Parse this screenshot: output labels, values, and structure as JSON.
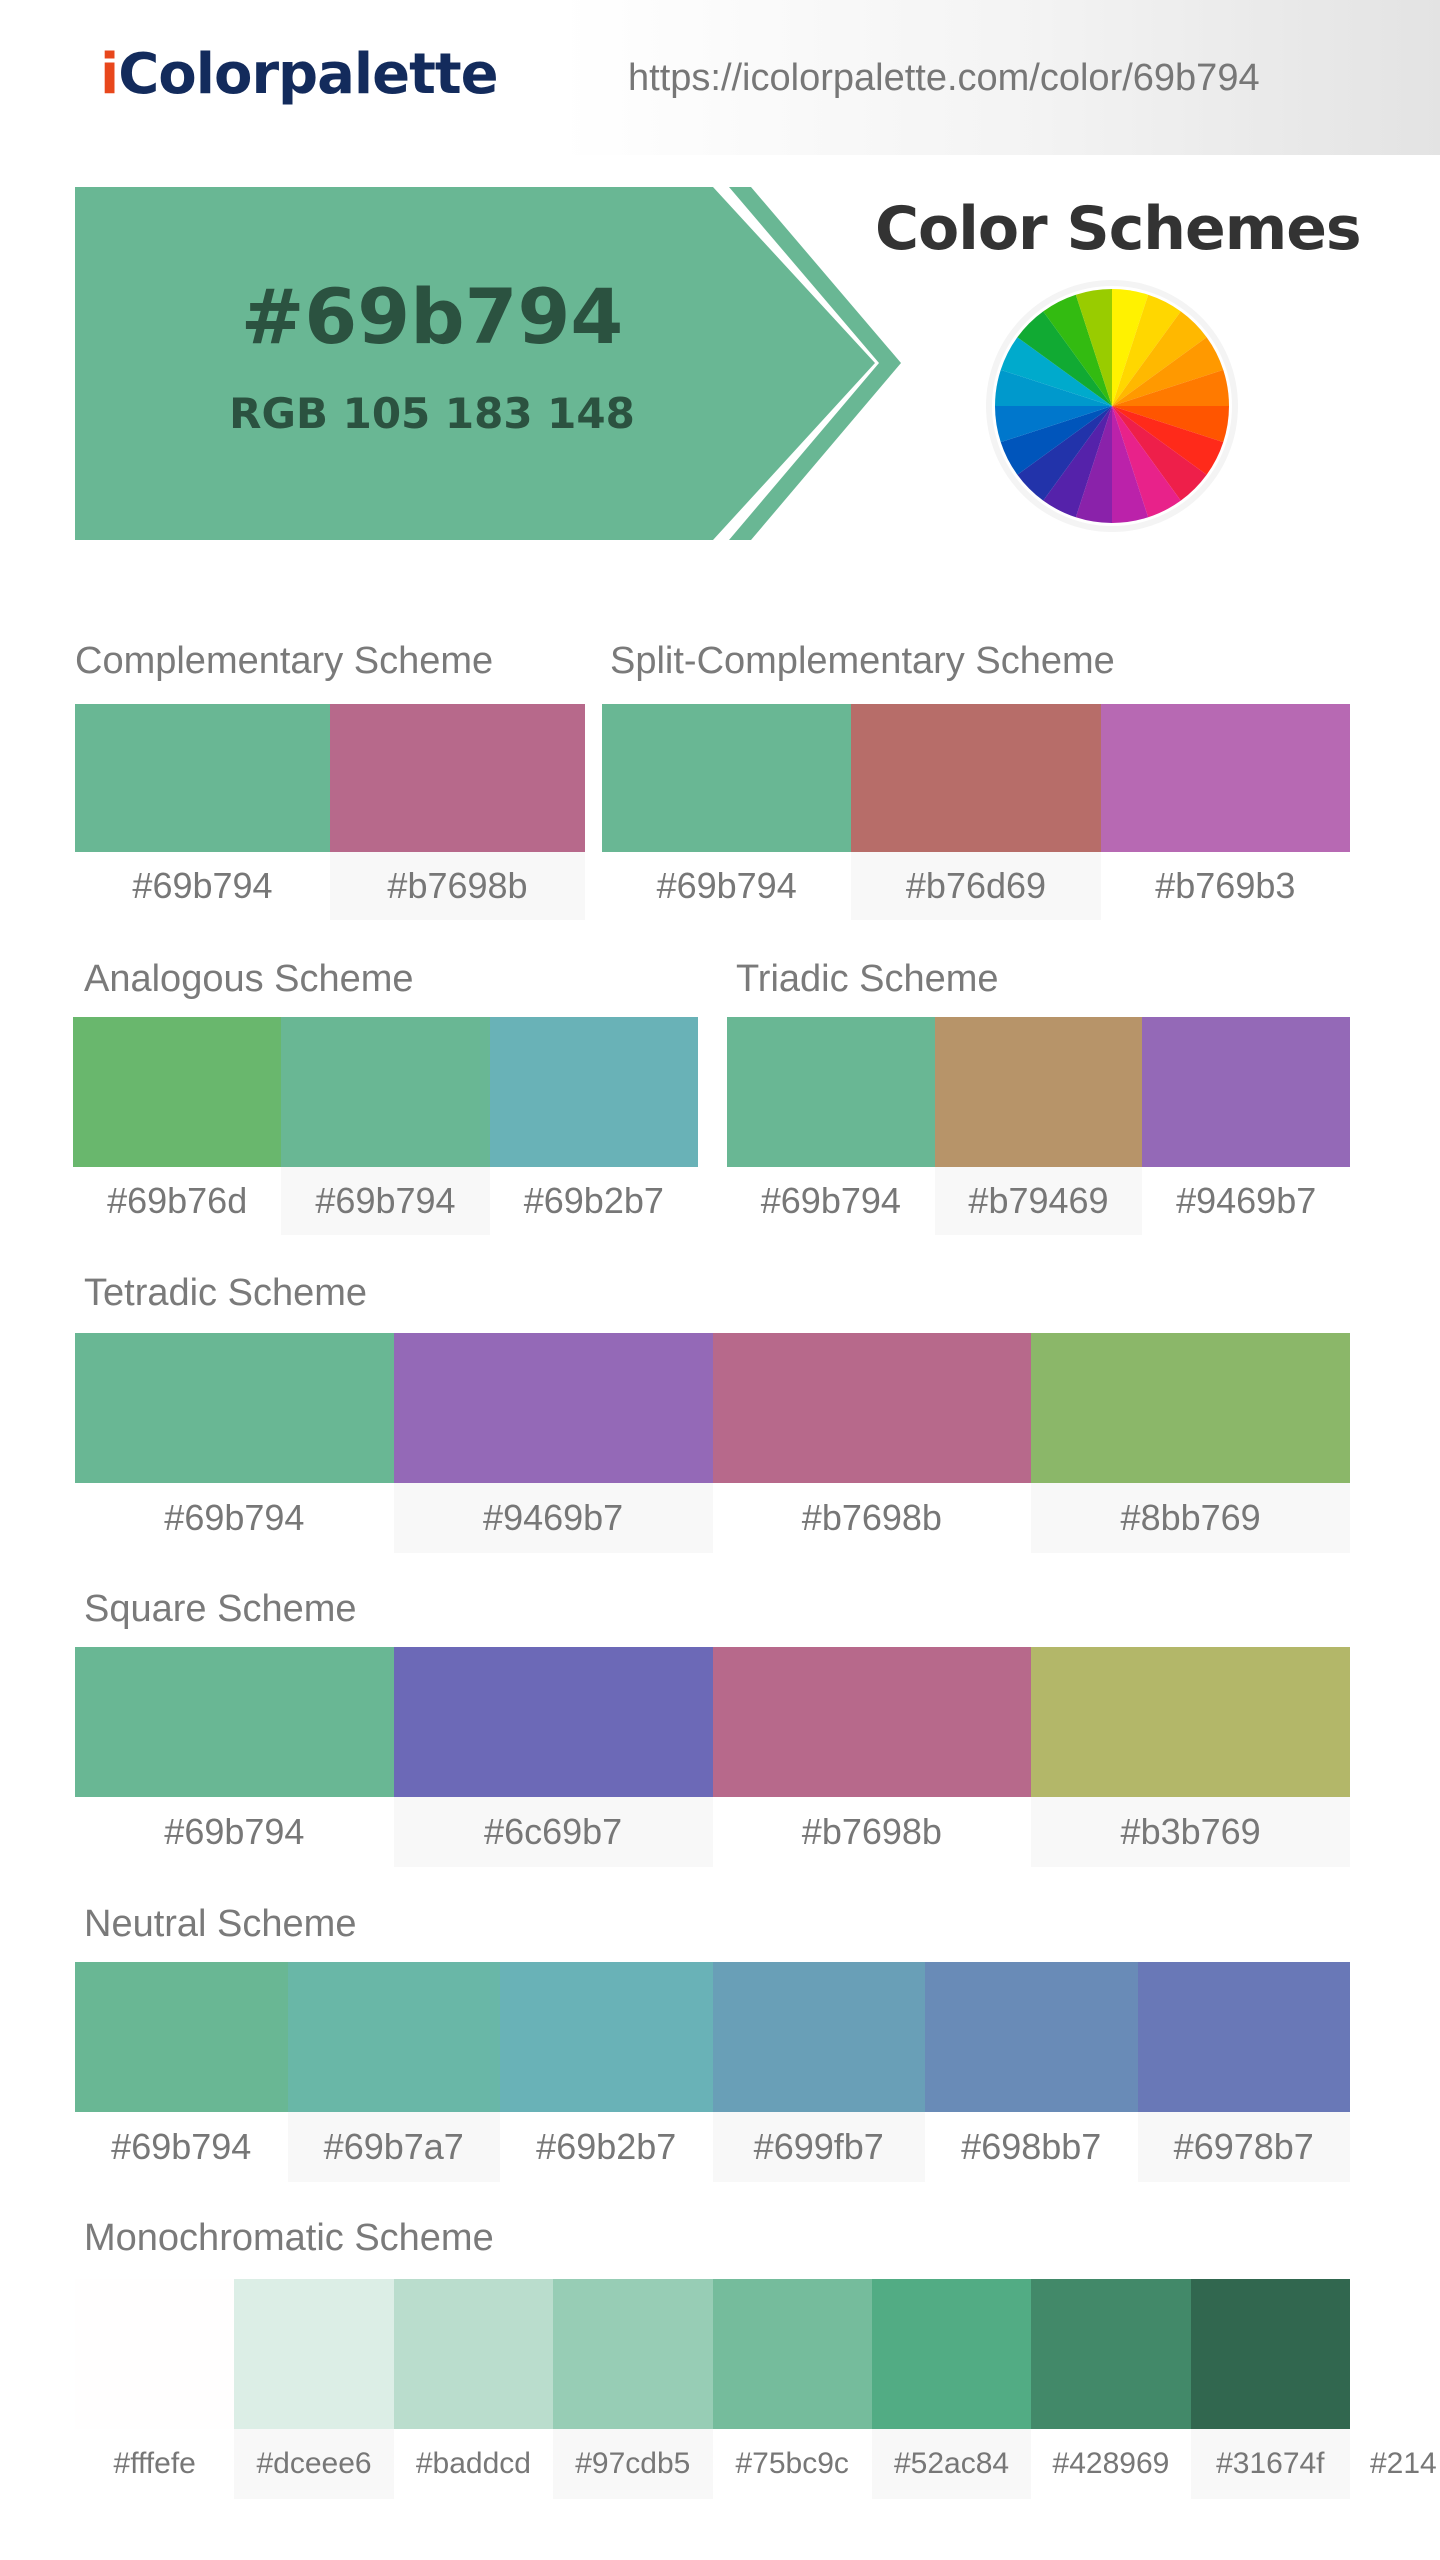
{
  "header": {
    "logo_i": "i",
    "logo_rest": "Colorpalette",
    "url": "https://icolorpalette.com/color/69b794"
  },
  "hero": {
    "hex": "#69b794",
    "rgb": "RGB 105 183 148",
    "color": "#69b794"
  },
  "schemes_title": "Color Schemes",
  "color_wheel_colors": [
    "#fff200",
    "#ffd700",
    "#ffb800",
    "#ff9900",
    "#ff7a00",
    "#ff5500",
    "#ff2a1a",
    "#ee1f4a",
    "#e8228a",
    "#bb22aa",
    "#8a22aa",
    "#5522aa",
    "#2233aa",
    "#0055bb",
    "#0077cc",
    "#0099cc",
    "#00aacc",
    "#11aa33",
    "#33bb11",
    "#99cc00"
  ],
  "sections": {
    "complementary": {
      "title": "Complementary Scheme",
      "swatches": [
        {
          "hex": "#69b794",
          "label": "#69b794"
        },
        {
          "hex": "#b7698b",
          "label": "#b7698b"
        }
      ]
    },
    "split": {
      "title": "Split-Complementary Scheme",
      "swatches": [
        {
          "hex": "#69b794",
          "label": "#69b794"
        },
        {
          "hex": "#b76d69",
          "label": "#b76d69"
        },
        {
          "hex": "#b769b3",
          "label": "#b769b3"
        }
      ]
    },
    "analogous": {
      "title": "Analogous Scheme",
      "swatches": [
        {
          "hex": "#69b76d",
          "label": "#69b76d"
        },
        {
          "hex": "#69b794",
          "label": "#69b794"
        },
        {
          "hex": "#69b2b7",
          "label": "#69b2b7"
        }
      ]
    },
    "triadic": {
      "title": "Triadic Scheme",
      "swatches": [
        {
          "hex": "#69b794",
          "label": "#69b794"
        },
        {
          "hex": "#b79469",
          "label": "#b79469"
        },
        {
          "hex": "#9469b7",
          "label": "#9469b7"
        }
      ]
    },
    "tetradic": {
      "title": "Tetradic Scheme",
      "swatches": [
        {
          "hex": "#69b794",
          "label": "#69b794"
        },
        {
          "hex": "#9469b7",
          "label": "#9469b7"
        },
        {
          "hex": "#b7698b",
          "label": "#b7698b"
        },
        {
          "hex": "#8bb769",
          "label": "#8bb769"
        }
      ]
    },
    "square": {
      "title": "Square Scheme",
      "swatches": [
        {
          "hex": "#69b794",
          "label": "#69b794"
        },
        {
          "hex": "#6c69b7",
          "label": "#6c69b7"
        },
        {
          "hex": "#b7698b",
          "label": "#b7698b"
        },
        {
          "hex": "#b3b769",
          "label": "#b3b769"
        }
      ]
    },
    "neutral": {
      "title": "Neutral Scheme",
      "swatches": [
        {
          "hex": "#69b794",
          "label": "#69b794"
        },
        {
          "hex": "#69b7a7",
          "label": "#69b7a7"
        },
        {
          "hex": "#69b2b7",
          "label": "#69b2b7"
        },
        {
          "hex": "#699fb7",
          "label": "#699fb7"
        },
        {
          "hex": "#698bb7",
          "label": "#698bb7"
        },
        {
          "hex": "#6978b7",
          "label": "#6978b7"
        }
      ]
    },
    "monochromatic": {
      "title": "Monochromatic Scheme",
      "swatches": [
        {
          "hex": "#fffefe",
          "label": "#fffefe"
        },
        {
          "hex": "#dceee6",
          "label": "#dceee6"
        },
        {
          "hex": "#baddcd",
          "label": "#baddcd"
        },
        {
          "hex": "#97cdb5",
          "label": "#97cdb5"
        },
        {
          "hex": "#75bc9c",
          "label": "#75bc9c"
        },
        {
          "hex": "#52ac84",
          "label": "#52ac84"
        },
        {
          "hex": "#428969",
          "label": "#428969"
        },
        {
          "hex": "#31674f",
          "label": "#31674f"
        }
      ],
      "overflow_label": "#214"
    }
  }
}
